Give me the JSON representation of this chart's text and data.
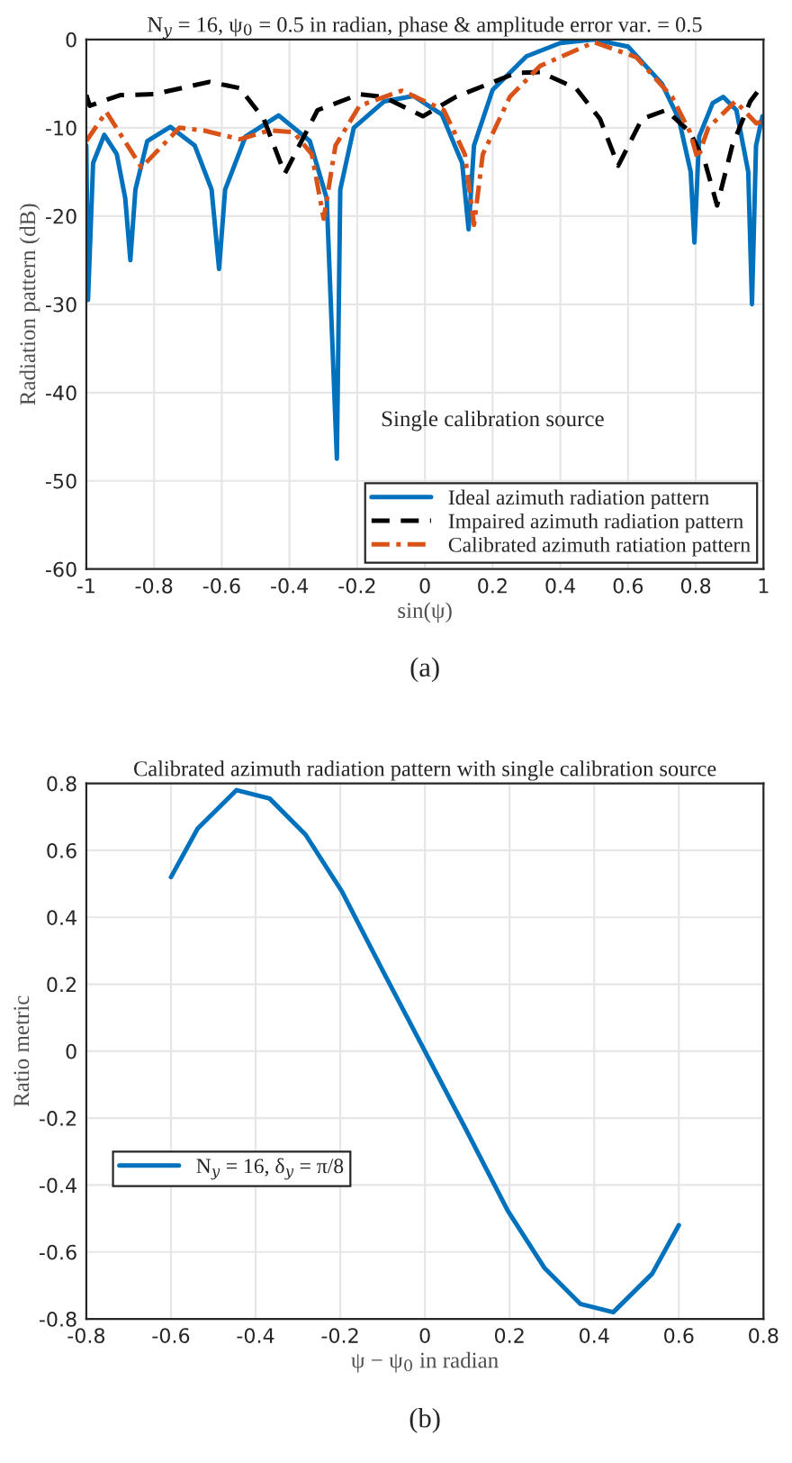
{
  "chart_data": [
    {
      "type": "line",
      "title": "N$_{y}$ = 16, ψ$_{0}$ = 0.5 in radian, phase & amplitude error var. = 0.5",
      "xlabel": "sin(ψ)",
      "ylabel": "Radiation pattern (dB)",
      "xlim": [
        -1,
        1
      ],
      "ylim": [
        -60,
        0
      ],
      "xticks": [
        -1,
        -0.8,
        -0.6,
        -0.4,
        -0.2,
        0,
        0.2,
        0.4,
        0.6,
        0.8,
        1
      ],
      "yticks": [
        -60,
        -50,
        -40,
        -30,
        -20,
        -10,
        0
      ],
      "grid": true,
      "legend": "bottom right",
      "annotations": [
        "Single calibration source",
        "(a)"
      ],
      "series": [
        {
          "name": "Ideal azimuth radiation pattern",
          "color": "#0072bd",
          "line_style": "solid",
          "x": [
            -1.0,
            -0.995,
            -0.98,
            -0.947,
            -0.91,
            -0.885,
            -0.87,
            -0.855,
            -0.82,
            -0.752,
            -0.68,
            -0.63,
            -0.608,
            -0.59,
            -0.53,
            -0.432,
            -0.34,
            -0.29,
            -0.26,
            -0.25,
            -0.21,
            -0.12,
            -0.033,
            0.05,
            0.11,
            0.129,
            0.145,
            0.2,
            0.3,
            0.4,
            0.5,
            0.6,
            0.7,
            0.75,
            0.785,
            0.796,
            0.81,
            0.85,
            0.881,
            0.92,
            0.955,
            0.966,
            0.978,
            0.997
          ],
          "values": [
            -12,
            -29.5,
            -14,
            -10.8,
            -13,
            -18,
            -25,
            -17,
            -11.5,
            -9.9,
            -12,
            -17,
            -26,
            -17,
            -11,
            -8.6,
            -11.5,
            -18,
            -47.5,
            -17,
            -10,
            -7,
            -6.4,
            -8.5,
            -14,
            -21.5,
            -12,
            -5.7,
            -1.9,
            -0.4,
            0,
            -0.8,
            -5,
            -9,
            -15,
            -23,
            -11,
            -7.2,
            -6.5,
            -8,
            -15,
            -30,
            -12,
            -8.7
          ]
        },
        {
          "name": "Impaired azimuth radiation pattern",
          "color": "#000000",
          "line_style": "dashed",
          "x": [
            -1.0,
            -0.99,
            -0.9,
            -0.8,
            -0.636,
            -0.547,
            -0.476,
            -0.414,
            -0.317,
            -0.193,
            -0.122,
            -0.006,
            0.091,
            0.269,
            0.34,
            0.446,
            0.517,
            0.571,
            0.641,
            0.712,
            0.783,
            0.828,
            0.863,
            0.908,
            0.961,
            1.0
          ],
          "values": [
            -6.3,
            -7.5,
            -6.3,
            -6.2,
            -4.8,
            -5.5,
            -9,
            -15.2,
            -8,
            -6.2,
            -6.5,
            -8.7,
            -6.5,
            -3.8,
            -3.7,
            -5.5,
            -9,
            -14.3,
            -9,
            -8,
            -10.5,
            -14,
            -18.8,
            -12,
            -7,
            -5
          ]
        },
        {
          "name": "Calibrated azimuth ratiation pattern",
          "color": "#d95319",
          "line_style": "dashdot",
          "x": [
            -1.0,
            -0.941,
            -0.837,
            -0.725,
            -0.654,
            -0.547,
            -0.459,
            -0.388,
            -0.334,
            -0.299,
            -0.264,
            -0.193,
            -0.068,
            0.056,
            0.118,
            0.145,
            0.171,
            0.251,
            0.34,
            0.5,
            0.624,
            0.73,
            0.783,
            0.805,
            0.837,
            0.917,
            0.979,
            1.0
          ],
          "values": [
            -11.5,
            -8.2,
            -14.5,
            -10,
            -10.3,
            -11.3,
            -10.3,
            -10.5,
            -13,
            -20.3,
            -12,
            -7.5,
            -5.8,
            -8,
            -13,
            -21,
            -13,
            -6.5,
            -3,
            -0.3,
            -2,
            -6.5,
            -10.5,
            -13.5,
            -10,
            -7,
            -9.5,
            -9.2
          ]
        }
      ]
    },
    {
      "type": "line",
      "title": "Calibrated azimuth radiation pattern with single calibration source",
      "xlabel": "ψ − ψ$_{0}$ in radian",
      "ylabel": "Ratio metric",
      "xlim": [
        -0.8,
        0.8
      ],
      "ylim": [
        -0.8,
        0.8
      ],
      "xticks": [
        -0.8,
        -0.6,
        -0.4,
        -0.2,
        0,
        0.2,
        0.4,
        0.6,
        0.8
      ],
      "yticks": [
        -0.8,
        -0.6,
        -0.4,
        -0.2,
        0,
        0.2,
        0.4,
        0.6,
        0.8
      ],
      "grid": true,
      "legend": "left",
      "annotations": [
        "(b)"
      ],
      "series": [
        {
          "name": "N$_{y}$ = 16, δ$_{y}$ = π/8",
          "color": "#0072bd",
          "line_style": "solid",
          "x": [
            -0.6,
            -0.537,
            -0.445,
            -0.367,
            -0.282,
            -0.196,
            -0.097,
            0,
            0.097,
            0.196,
            0.282,
            0.367,
            0.445,
            0.537,
            0.6
          ],
          "values": [
            0.52,
            0.665,
            0.78,
            0.755,
            0.647,
            0.477,
            0.234,
            0,
            -0.234,
            -0.477,
            -0.647,
            -0.755,
            -0.78,
            -0.665,
            -0.52
          ]
        }
      ]
    }
  ]
}
